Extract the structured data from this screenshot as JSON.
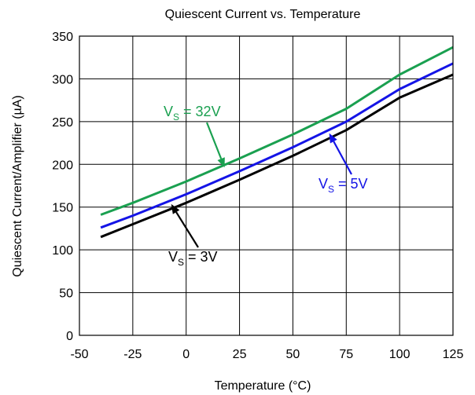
{
  "chart_data": {
    "type": "line",
    "title": "Quiescent Current vs. Temperature",
    "xlabel": "Temperature (°C)",
    "ylabel": "Quiescent Current/Amplifier (µA)",
    "xlim": [
      -50,
      125
    ],
    "ylim": [
      0,
      350
    ],
    "xticks": [
      -50,
      -25,
      0,
      25,
      50,
      75,
      100,
      125
    ],
    "yticks": [
      0,
      50,
      100,
      150,
      200,
      250,
      300,
      350
    ],
    "grid": true,
    "series": [
      {
        "name": "VS = 32V",
        "label_main": "V",
        "label_sub": "S",
        "label_rest": " = 32V",
        "color": "#1aa050",
        "x": [
          -40,
          -25,
          0,
          25,
          50,
          75,
          100,
          125
        ],
        "y": [
          141,
          155,
          180,
          207,
          235,
          265,
          305,
          337
        ]
      },
      {
        "name": "VS = 5V",
        "label_main": "V",
        "label_sub": "S",
        "label_rest": " = 5V",
        "color": "#1414e6",
        "x": [
          -40,
          -25,
          0,
          25,
          50,
          75,
          100,
          125
        ],
        "y": [
          126,
          140,
          165,
          192,
          220,
          250,
          288,
          318
        ]
      },
      {
        "name": "VS = 3V",
        "label_main": "V",
        "label_sub": "S",
        "label_rest": " = 3V",
        "color": "#000000",
        "x": [
          -40,
          -25,
          0,
          25,
          50,
          75,
          100,
          125
        ],
        "y": [
          115,
          130,
          155,
          182,
          210,
          240,
          278,
          305
        ]
      }
    ]
  }
}
